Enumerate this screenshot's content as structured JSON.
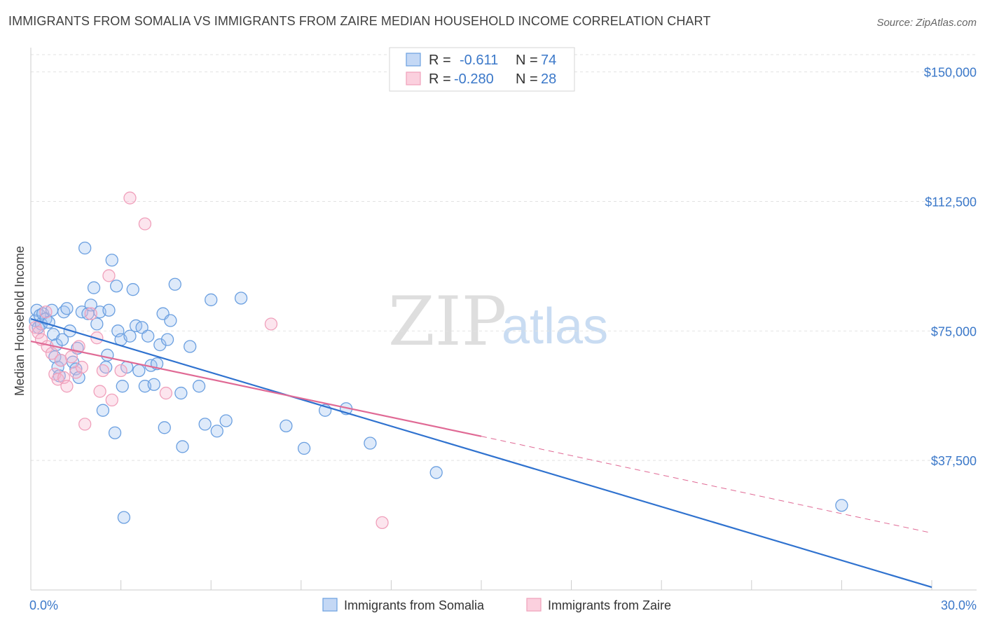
{
  "title": "IMMIGRANTS FROM SOMALIA VS IMMIGRANTS FROM ZAIRE MEDIAN HOUSEHOLD INCOME CORRELATION CHART",
  "source": "Source: ZipAtlas.com",
  "watermark": {
    "zip": "ZIP",
    "atlas": "atlas"
  },
  "legend": {
    "r_label": "R =",
    "n_label": "N =",
    "rows": [
      {
        "series": "Immigrants from Somalia",
        "r": "-0.611",
        "n": "74",
        "color": "#6a9fe0"
      },
      {
        "series": "Immigrants from Zaire",
        "r": "-0.280",
        "n": "28",
        "color": "#f0a0bb"
      }
    ]
  },
  "chart_data": {
    "type": "scatter",
    "title": "IMMIGRANTS FROM SOMALIA VS IMMIGRANTS FROM ZAIRE MEDIAN HOUSEHOLD INCOME CORRELATION CHART",
    "xlabel": "",
    "ylabel": "Median Household Income",
    "xlim": [
      0,
      30
    ],
    "ylim": [
      0,
      155000
    ],
    "y_ticks": [
      37500,
      75000,
      112500,
      150000
    ],
    "y_tick_labels": [
      "$37,500",
      "$75,000",
      "$112,500",
      "$150,000"
    ],
    "x_tick_labels": [
      "0.0%",
      "30.0%"
    ],
    "grid": true,
    "legend_position": "top-center",
    "series": [
      {
        "name": "Immigrants from Somalia",
        "color": "#6a9fe0",
        "line_color": "#2f72cf",
        "trend": {
          "x0": 0,
          "y0": 78500,
          "x1": 30,
          "y1": 800
        },
        "points": [
          [
            0.15,
            78000
          ],
          [
            0.2,
            81000
          ],
          [
            0.25,
            76000
          ],
          [
            0.3,
            79500
          ],
          [
            0.35,
            77000
          ],
          [
            0.4,
            80000
          ],
          [
            0.5,
            78500
          ],
          [
            0.6,
            77500
          ],
          [
            0.7,
            81000
          ],
          [
            0.75,
            74000
          ],
          [
            0.8,
            67500
          ],
          [
            0.85,
            71000
          ],
          [
            0.9,
            64500
          ],
          [
            0.95,
            62000
          ],
          [
            1.0,
            66500
          ],
          [
            1.05,
            72500
          ],
          [
            1.1,
            80500
          ],
          [
            1.2,
            81500
          ],
          [
            1.3,
            75000
          ],
          [
            1.4,
            66000
          ],
          [
            1.5,
            64000
          ],
          [
            1.55,
            70000
          ],
          [
            1.6,
            61500
          ],
          [
            1.7,
            80500
          ],
          [
            1.8,
            99000
          ],
          [
            1.9,
            80000
          ],
          [
            2.0,
            82500
          ],
          [
            2.1,
            87500
          ],
          [
            2.2,
            77000
          ],
          [
            2.3,
            80500
          ],
          [
            2.4,
            52000
          ],
          [
            2.5,
            64500
          ],
          [
            2.55,
            68000
          ],
          [
            2.6,
            81000
          ],
          [
            2.7,
            95500
          ],
          [
            2.8,
            45500
          ],
          [
            2.85,
            88000
          ],
          [
            2.9,
            75000
          ],
          [
            3.0,
            72500
          ],
          [
            3.05,
            59000
          ],
          [
            3.1,
            21000
          ],
          [
            3.2,
            64500
          ],
          [
            3.3,
            73500
          ],
          [
            3.4,
            87000
          ],
          [
            3.5,
            76500
          ],
          [
            3.6,
            63500
          ],
          [
            3.7,
            76000
          ],
          [
            3.8,
            59000
          ],
          [
            3.9,
            73500
          ],
          [
            4.0,
            65000
          ],
          [
            4.1,
            59500
          ],
          [
            4.2,
            65500
          ],
          [
            4.3,
            71000
          ],
          [
            4.4,
            80000
          ],
          [
            4.45,
            47000
          ],
          [
            4.55,
            72500
          ],
          [
            4.65,
            78000
          ],
          [
            4.8,
            88500
          ],
          [
            5.0,
            57000
          ],
          [
            5.05,
            41500
          ],
          [
            5.3,
            70500
          ],
          [
            5.6,
            59000
          ],
          [
            5.8,
            48000
          ],
          [
            6.0,
            84000
          ],
          [
            6.2,
            46000
          ],
          [
            6.5,
            49000
          ],
          [
            7.0,
            84500
          ],
          [
            8.5,
            47500
          ],
          [
            9.1,
            41000
          ],
          [
            9.8,
            52000
          ],
          [
            10.5,
            52500
          ],
          [
            11.3,
            42500
          ],
          [
            13.5,
            34000
          ],
          [
            27.0,
            24500
          ]
        ]
      },
      {
        "name": "Immigrants from Zaire",
        "color": "#f0a0bb",
        "line_color": "#e06a95",
        "trend": {
          "x0": 0,
          "y0": 72000,
          "x1": 15,
          "y1": 44500,
          "x_dash_end": 30,
          "y_dash_end": 16500
        },
        "points": [
          [
            0.15,
            76000
          ],
          [
            0.25,
            74500
          ],
          [
            0.35,
            72500
          ],
          [
            0.5,
            80500
          ],
          [
            0.55,
            70500
          ],
          [
            0.7,
            68500
          ],
          [
            0.8,
            62500
          ],
          [
            0.9,
            61000
          ],
          [
            1.0,
            66500
          ],
          [
            1.1,
            61500
          ],
          [
            1.2,
            59000
          ],
          [
            1.35,
            67500
          ],
          [
            1.5,
            63000
          ],
          [
            1.6,
            70500
          ],
          [
            1.7,
            64500
          ],
          [
            1.8,
            48000
          ],
          [
            2.0,
            80000
          ],
          [
            2.2,
            73000
          ],
          [
            2.3,
            57500
          ],
          [
            2.4,
            63500
          ],
          [
            2.6,
            91000
          ],
          [
            2.7,
            55000
          ],
          [
            3.0,
            63500
          ],
          [
            3.3,
            113500
          ],
          [
            3.8,
            106000
          ],
          [
            4.5,
            57000
          ],
          [
            8.0,
            77000
          ],
          [
            11.7,
            19500
          ]
        ]
      }
    ]
  }
}
